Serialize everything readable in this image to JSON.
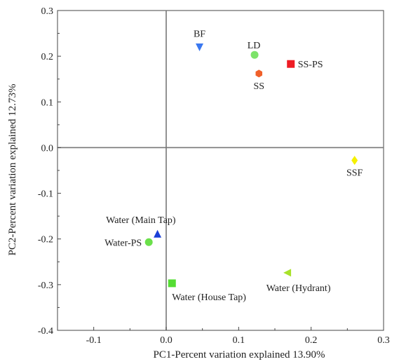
{
  "chart_data": {
    "type": "scatter",
    "xlabel": "PC1-Percent variation explained 13.90%",
    "ylabel": "PC2-Percent variation explained 12.73%",
    "xlim": [
      -0.15,
      0.3
    ],
    "ylim": [
      -0.4,
      0.3
    ],
    "x_ticks": [
      "-0.1",
      "0.0",
      "0.1",
      "0.2",
      "0.3"
    ],
    "y_ticks": [
      "-0.4",
      "-0.3",
      "-0.2",
      "-0.1",
      "0.0",
      "0.1",
      "0.2",
      "0.3"
    ],
    "x_tick_values": [
      -0.1,
      0.0,
      0.1,
      0.2,
      0.3
    ],
    "y_tick_values": [
      -0.4,
      -0.3,
      -0.2,
      -0.1,
      0.0,
      0.1,
      0.2,
      0.3
    ],
    "reference_lines": {
      "x": 0,
      "y": 0
    },
    "grid": false,
    "points": [
      {
        "label": "BF",
        "x": 0.046,
        "y": 0.221,
        "marker": "triangle-down",
        "color": "#3a78f0",
        "label_anchor": "above"
      },
      {
        "label": "LD",
        "x": 0.122,
        "y": 0.203,
        "marker": "circle",
        "color": "#7de36a",
        "label_anchor": "above-left"
      },
      {
        "label": "SS",
        "x": 0.128,
        "y": 0.162,
        "marker": "hexagon",
        "color": "#f0602a",
        "label_anchor": "below"
      },
      {
        "label": "SS-PS",
        "x": 0.172,
        "y": 0.183,
        "marker": "square",
        "color": "#ee1c24",
        "label_anchor": "right"
      },
      {
        "label": "SSF",
        "x": 0.26,
        "y": -0.028,
        "marker": "diamond",
        "color": "#f5f000",
        "label_anchor": "below"
      },
      {
        "label": "Water (Main Tap)",
        "x": -0.012,
        "y": -0.19,
        "marker": "triangle-up",
        "color": "#1a3fd8",
        "label_anchor": "above-left"
      },
      {
        "label": "Water-PS",
        "x": -0.024,
        "y": -0.207,
        "marker": "circle",
        "color": "#6be04a",
        "label_anchor": "left"
      },
      {
        "label": "Water (House Tap)",
        "x": 0.008,
        "y": -0.297,
        "marker": "square",
        "color": "#55dd33",
        "label_anchor": "below-right"
      },
      {
        "label": "Water (Hydrant)",
        "x": 0.168,
        "y": -0.274,
        "marker": "triangle-left",
        "color": "#a8e22a",
        "label_anchor": "below"
      }
    ]
  }
}
